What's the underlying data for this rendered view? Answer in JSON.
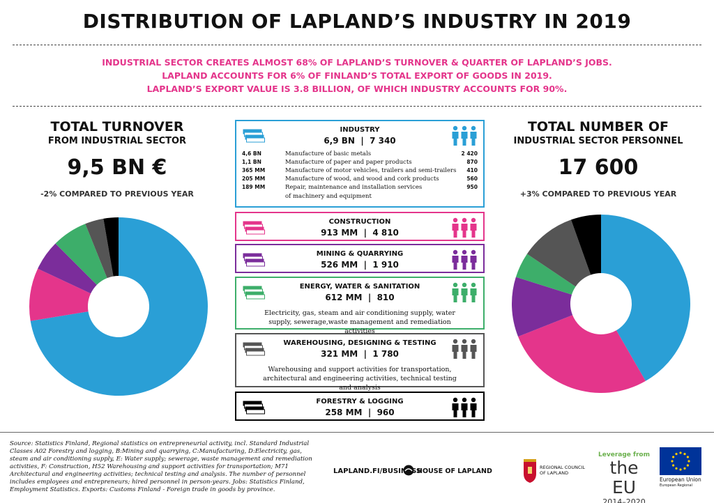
{
  "title": "DISTRIBUTION OF LAPLAND’S INDUSTRY IN 2019",
  "subtitle_lines": [
    "INDUSTRIAL SECTOR CREATES ALMOST 68% OF LAPLAND’S TURNOVER & QUARTER OF LAPLAND’S JOBS.",
    "LAPLAND ACCOUNTS FOR 6% OF FINLAND’S TOTAL EXPORT OF GOODS IN 2019.",
    "LAPLAND’S EXPORT VALUE IS 3.8 BILLION, OF WHICH INDUSTRY ACCOUNTS FOR 90%."
  ],
  "turnover": {
    "heading": "TOTAL TURNOVER",
    "subheading": "FROM INDUSTRIAL SECTOR",
    "value": "9,5 BN €",
    "note": "-2% COMPARED TO PREVIOUS YEAR"
  },
  "personnel": {
    "heading": "TOTAL NUMBER OF",
    "subheading": "INDUSTRIAL SECTOR PERSONNEL",
    "value": "17 600",
    "note": "+3% COMPARED TO PREVIOUS YEAR"
  },
  "colors": {
    "industry": "#2a9fd6",
    "construction": "#e4358b",
    "mining": "#7b2d9b",
    "energy": "#3dae6a",
    "warehousing": "#555555",
    "forestry": "#000000",
    "accent": "#e4358b"
  },
  "sectors": [
    {
      "key": "industry",
      "name": "INDUSTRY",
      "turnover": "6,9 BN",
      "personnel": "7 340",
      "sub_items": [
        {
          "value": "4,6  BN",
          "desc": "Manufacture of basic metals",
          "personnel": "2 420"
        },
        {
          "value": "1,1  BN",
          "desc": "Manufacture of paper and paper products",
          "personnel": "870"
        },
        {
          "value": "365  MM",
          "desc": "Manufacture of motor vehicles, trailers and semi-trailers",
          "personnel": "410"
        },
        {
          "value": "205  MM",
          "desc": "Manufacture of wood, and wood and cork products",
          "personnel": "560"
        },
        {
          "value": "189  MM",
          "desc": "Repair, maintenance and installation services",
          "personnel": "950"
        }
      ],
      "sub_tail": "of machinery and equipment"
    },
    {
      "key": "construction",
      "name": "CONSTRUCTION",
      "turnover": "913 MM",
      "personnel": "4 810"
    },
    {
      "key": "mining",
      "name": "MINING & QUARRYING",
      "turnover": "526 MM",
      "personnel": "1 910"
    },
    {
      "key": "energy",
      "name": "ENERGY, WATER & SANITATION",
      "turnover": "612 MM",
      "personnel": "810",
      "description": "Electricity, gas, steam and air conditioning supply, water supply, sewerage,waste management and remediation activities"
    },
    {
      "key": "warehousing",
      "name": "WAREHOUSING, DESIGNING & TESTING",
      "turnover": "321 MM",
      "personnel": "1 780",
      "description": "Warehousing and support activities for transportation, architectural and engineering activities, technical testing and analysis"
    },
    {
      "key": "forestry",
      "name": "FORESTRY & LOGGING",
      "turnover": "258 MM",
      "personnel": "960"
    }
  ],
  "chart_data": [
    {
      "type": "pie",
      "categories": [
        "Industry",
        "Construction",
        "Mining & quarrying",
        "Energy, water & sanitation",
        "Warehousing, designing & testing",
        "Forestry & logging"
      ],
      "values": [
        6900,
        913,
        526,
        612,
        321,
        258
      ],
      "unit": "MM €"
    },
    {
      "type": "pie",
      "categories": [
        "Industry",
        "Construction",
        "Mining & quarrying",
        "Energy, water & sanitation",
        "Warehousing, designing & testing",
        "Forestry & logging"
      ],
      "values": [
        7340,
        4810,
        1910,
        810,
        1780,
        960
      ],
      "unit": "persons"
    }
  ],
  "footer": {
    "source": "Source: Statistics Finland, Regional statistics on entrepreneurial activity, incl. Standard Industrial Classes A02 Forestry and logging, B:Mining and quarrying, C:Manufacturing, D:Electricity, gas, steam and air conditioning supply, E: Water supply; sewerage, waste management and remediation activities, F: Construction, H52 Warehousing and support activities for transportation; M71 Architectural and engineering activities; technical testing and analysis. The number of personnel includes employees and entrepreneurs; hired personnel in person-years. Jobs: Statistics Finland, Employment Statistics. Exports: Customs Finland - Foreign trade in goods by province.",
    "website": "LAPLAND.FI/BUSINESS",
    "house_of_lapland": "HOUSE OF LAPLAND",
    "regional_council": [
      "REGIONAL COUNCIL",
      "OF LAPLAND"
    ],
    "leverage": [
      "Leverage from",
      "the EU",
      "2014–2020"
    ],
    "eu": [
      "European Union",
      "European Regional"
    ]
  }
}
